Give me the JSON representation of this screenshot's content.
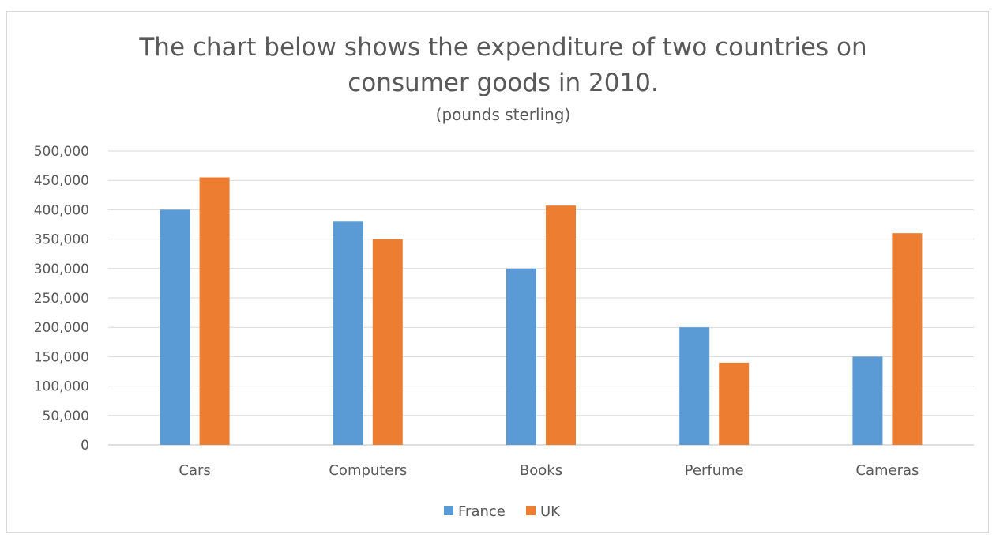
{
  "chart_data": {
    "type": "bar",
    "title_line1": "The chart below shows the expenditure of two countries on",
    "title_line2": "consumer goods in 2010.",
    "subtitle": "(pounds sterling)",
    "xlabel": "",
    "ylabel": "",
    "categories": [
      "Cars",
      "Computers",
      "Books",
      "Perfume",
      "Cameras"
    ],
    "series": [
      {
        "name": "France",
        "color": "#5b9bd5",
        "values": [
          400000,
          380000,
          300000,
          200000,
          150000
        ]
      },
      {
        "name": "UK",
        "color": "#ed7d31",
        "values": [
          455000,
          350000,
          407000,
          140000,
          360000
        ]
      }
    ],
    "ylim": [
      0,
      500000
    ],
    "yticks": [
      0,
      50000,
      100000,
      150000,
      200000,
      250000,
      300000,
      350000,
      400000,
      450000,
      500000
    ],
    "ytick_labels": [
      "0",
      "50,000",
      "100,000",
      "150,000",
      "200,000",
      "250,000",
      "300,000",
      "350,000",
      "400,000",
      "450,000",
      "500,000"
    ],
    "grid": true,
    "legend_position": "bottom"
  }
}
